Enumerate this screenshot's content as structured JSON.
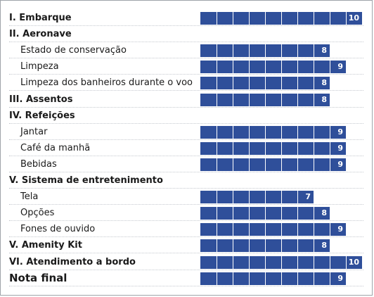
{
  "chart_data": {
    "type": "bar",
    "orientation": "horizontal",
    "scale_max": 10,
    "bar_color": "#2f4f9a",
    "categories": [
      {
        "label": "I. Embarque",
        "level": "section",
        "value": 10
      },
      {
        "label": "II. Aeronave",
        "level": "section",
        "value": null
      },
      {
        "label": "Estado de conservação",
        "level": "sub",
        "value": 8
      },
      {
        "label": "Limpeza",
        "level": "sub",
        "value": 9
      },
      {
        "label": "Limpeza dos banheiros durante o voo",
        "level": "sub",
        "value": 8
      },
      {
        "label": "III. Assentos",
        "level": "section",
        "value": 8
      },
      {
        "label": "IV. Refeições",
        "level": "section",
        "value": null
      },
      {
        "label": "Jantar",
        "level": "sub",
        "value": 9
      },
      {
        "label": "Café da manhã",
        "level": "sub",
        "value": 9
      },
      {
        "label": "Bebidas",
        "level": "sub",
        "value": 9
      },
      {
        "label": "V. Sistema de entretenimento",
        "level": "section",
        "value": null
      },
      {
        "label": "Tela",
        "level": "sub",
        "value": 7
      },
      {
        "label": "Opções",
        "level": "sub",
        "value": 8
      },
      {
        "label": "Fones de ouvido",
        "level": "sub",
        "value": 9
      },
      {
        "label": "V. Amenity Kit",
        "level": "section",
        "value": 8
      },
      {
        "label": "VI. Atendimento a bordo",
        "level": "section",
        "value": 10
      },
      {
        "label": "Nota final",
        "level": "final",
        "value": 9
      }
    ]
  }
}
